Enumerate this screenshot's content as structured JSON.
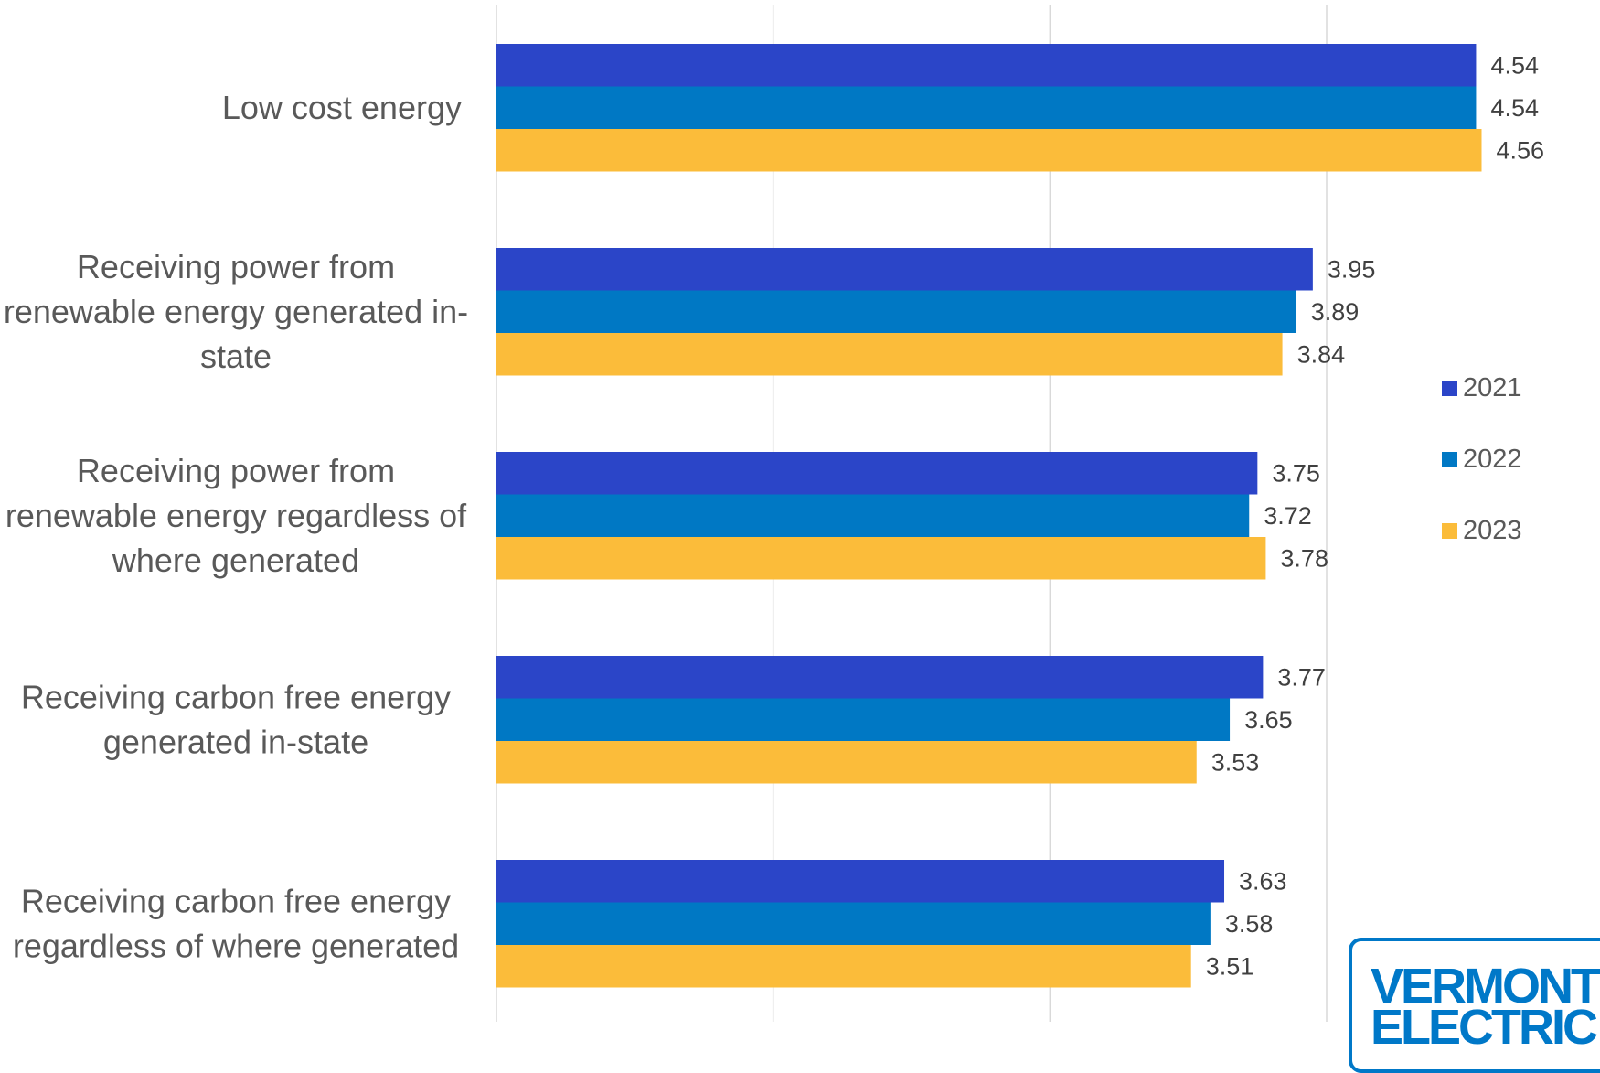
{
  "chart_data": {
    "type": "bar",
    "orientation": "horizontal",
    "title": "",
    "xlabel": "",
    "ylabel": "",
    "categories": [
      [
        "Low cost energy"
      ],
      [
        "Receiving power from",
        "renewable energy generated in-",
        "state"
      ],
      [
        "Receiving power from",
        "renewable energy regardless of",
        "where generated"
      ],
      [
        "Receiving carbon free energy",
        "generated in-state"
      ],
      [
        "Receiving carbon free energy",
        "regardless of where generated"
      ]
    ],
    "series": [
      {
        "name": "2021",
        "color": "#2b45c8",
        "values": [
          4.54,
          3.95,
          3.75,
          3.77,
          3.63
        ]
      },
      {
        "name": "2022",
        "color": "#0078c4",
        "values": [
          4.54,
          3.89,
          3.72,
          3.65,
          3.58
        ]
      },
      {
        "name": "2023",
        "color": "#fbbc3a",
        "values": [
          4.56,
          3.84,
          3.78,
          3.53,
          3.51
        ]
      }
    ],
    "data_labels": [
      [
        "4.54",
        "4.54",
        "4.56"
      ],
      [
        "3.95",
        "3.89",
        "3.84"
      ],
      [
        "3.75",
        "3.72",
        "3.78"
      ],
      [
        "3.77",
        "3.65",
        "3.53"
      ],
      [
        "3.63",
        "3.58",
        "3.51"
      ]
    ],
    "xlim": [
      1,
      4.6
    ],
    "grid": true,
    "tick_labels_visible": false,
    "legend_position": "right"
  },
  "logo": {
    "line1": "VERMONT",
    "line2": "ELECTRIC"
  }
}
